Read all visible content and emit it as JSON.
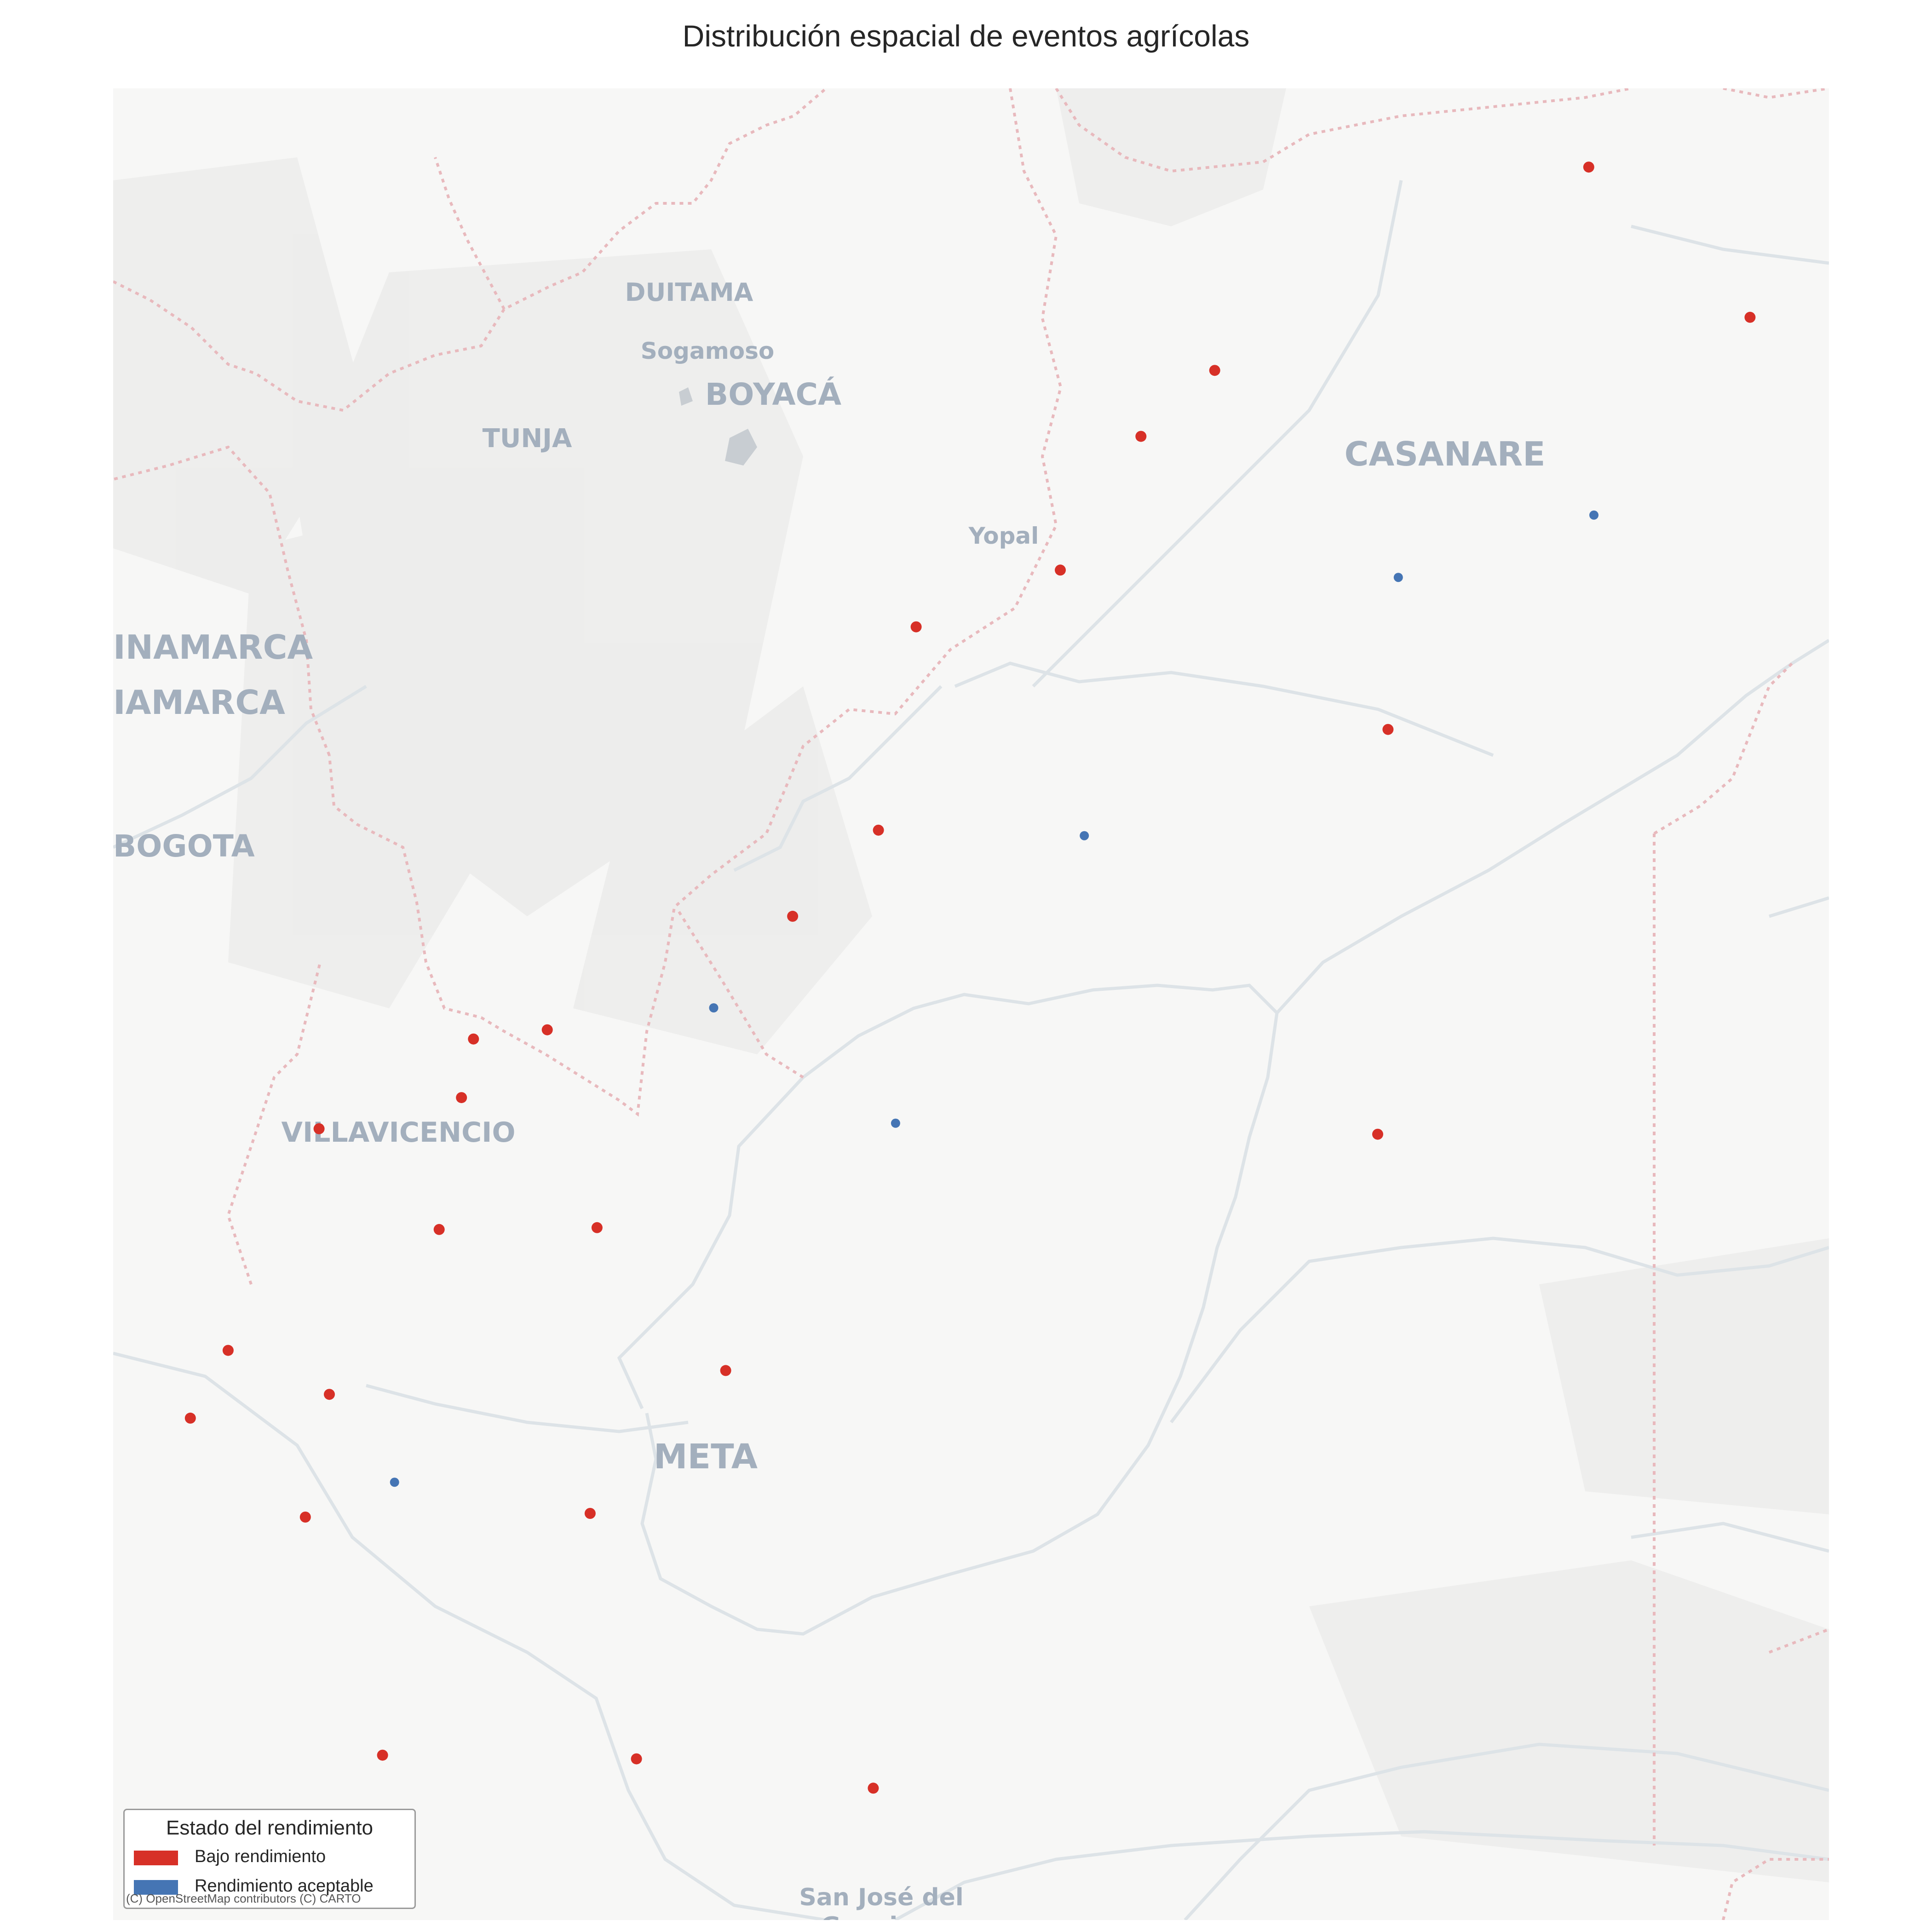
{
  "title": "Distribución espacial de eventos agrícolas",
  "place_labels": [
    {
      "text": "DUITAMA",
      "kind": "city"
    },
    {
      "text": "Sogamoso",
      "kind": "town"
    },
    {
      "text": "BOYACÁ",
      "kind": "region"
    },
    {
      "text": "TUNJA",
      "kind": "city"
    },
    {
      "text": "CASANARE",
      "kind": "region"
    },
    {
      "text": "Yopal",
      "kind": "town"
    },
    {
      "text": "INAMARCA",
      "kind": "region"
    },
    {
      "text": "IAMARCA",
      "kind": "region"
    },
    {
      "text": "BOGOTA",
      "kind": "region"
    },
    {
      "text": "VILLAVICENCIO",
      "kind": "city"
    },
    {
      "text": "META",
      "kind": "region"
    },
    {
      "text": "San José del",
      "kind": "city"
    },
    {
      "text": "Guaviare",
      "kind": "city"
    }
  ],
  "legend": {
    "title": "Estado del rendimiento",
    "items": [
      {
        "label": "Bajo rendimiento",
        "color": "#d73027"
      },
      {
        "label": "Rendimiento aceptable",
        "color": "#4575b4"
      }
    ]
  },
  "attribution": "(C) OpenStreetMap contributors (C) CARTO",
  "chart_data": {
    "type": "scatter",
    "title": "Distribución espacial de eventos agrícolas",
    "basemap": "CARTO Positron",
    "legend_position": "bottom-left",
    "coordinate_note": "point positions as fractions of map frame width (x, left to right) and height (y, top to bottom)",
    "series": [
      {
        "name": "Bajo rendimiento",
        "color": "#d73027",
        "points": [
          {
            "x": 0.86,
            "y": 0.043
          },
          {
            "x": 0.954,
            "y": 0.125
          },
          {
            "x": 0.642,
            "y": 0.154
          },
          {
            "x": 0.599,
            "y": 0.19
          },
          {
            "x": 0.552,
            "y": 0.263
          },
          {
            "x": 0.468,
            "y": 0.294
          },
          {
            "x": 0.743,
            "y": 0.35
          },
          {
            "x": 0.446,
            "y": 0.405
          },
          {
            "x": 0.396,
            "y": 0.452
          },
          {
            "x": 0.21,
            "y": 0.519
          },
          {
            "x": 0.253,
            "y": 0.514
          },
          {
            "x": 0.203,
            "y": 0.551
          },
          {
            "x": 0.12,
            "y": 0.568
          },
          {
            "x": 0.737,
            "y": 0.571
          },
          {
            "x": 0.19,
            "y": 0.623
          },
          {
            "x": 0.282,
            "y": 0.622
          },
          {
            "x": 0.067,
            "y": 0.689
          },
          {
            "x": 0.126,
            "y": 0.713
          },
          {
            "x": 0.045,
            "y": 0.726
          },
          {
            "x": 0.357,
            "y": 0.7
          },
          {
            "x": 0.112,
            "y": 0.78
          },
          {
            "x": 0.278,
            "y": 0.778
          },
          {
            "x": 0.157,
            "y": 0.91
          },
          {
            "x": 0.305,
            "y": 0.912
          },
          {
            "x": 0.443,
            "y": 0.928
          }
        ]
      },
      {
        "name": "Rendimiento aceptable",
        "color": "#4575b4",
        "points": [
          {
            "x": 0.863,
            "y": 0.233
          },
          {
            "x": 0.749,
            "y": 0.267
          },
          {
            "x": 0.566,
            "y": 0.408
          },
          {
            "x": 0.35,
            "y": 0.502
          },
          {
            "x": 0.456,
            "y": 0.565
          },
          {
            "x": 0.164,
            "y": 0.761
          }
        ]
      }
    ]
  }
}
